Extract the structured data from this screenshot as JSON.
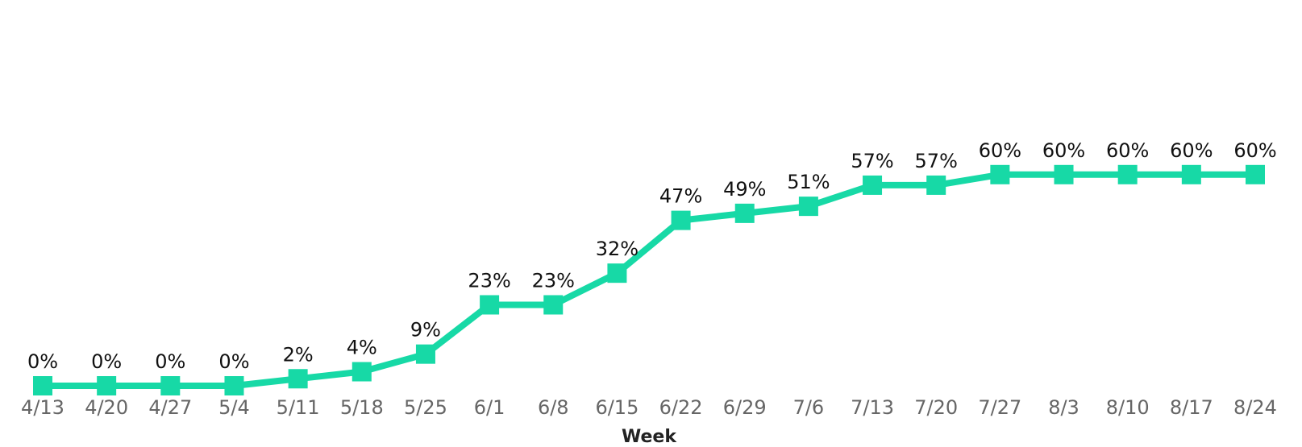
{
  "chart_data": {
    "type": "line",
    "x_label": "Week",
    "categories": [
      "4/13",
      "4/20",
      "4/27",
      "5/4",
      "5/11",
      "5/18",
      "5/25",
      "6/1",
      "6/8",
      "6/15",
      "6/22",
      "6/29",
      "7/6",
      "7/13",
      "7/20",
      "7/27",
      "8/3",
      "8/10",
      "8/17",
      "8/24"
    ],
    "series": [
      {
        "color": "#17d9a6",
        "values": [
          0,
          0,
          0,
          0,
          2,
          4,
          9,
          23,
          23,
          32,
          47,
          49,
          51,
          57,
          57,
          60,
          60,
          60,
          60,
          60
        ],
        "value_labels": [
          "0%",
          "0%",
          "0%",
          "0%",
          "2%",
          "4%",
          "9%",
          "23%",
          "23%",
          "32%",
          "47%",
          "49%",
          "51%",
          "57%",
          "57%",
          "60%",
          "60%",
          "60%",
          "60%",
          "60%"
        ]
      }
    ],
    "ylim": [
      0,
      100
    ]
  }
}
